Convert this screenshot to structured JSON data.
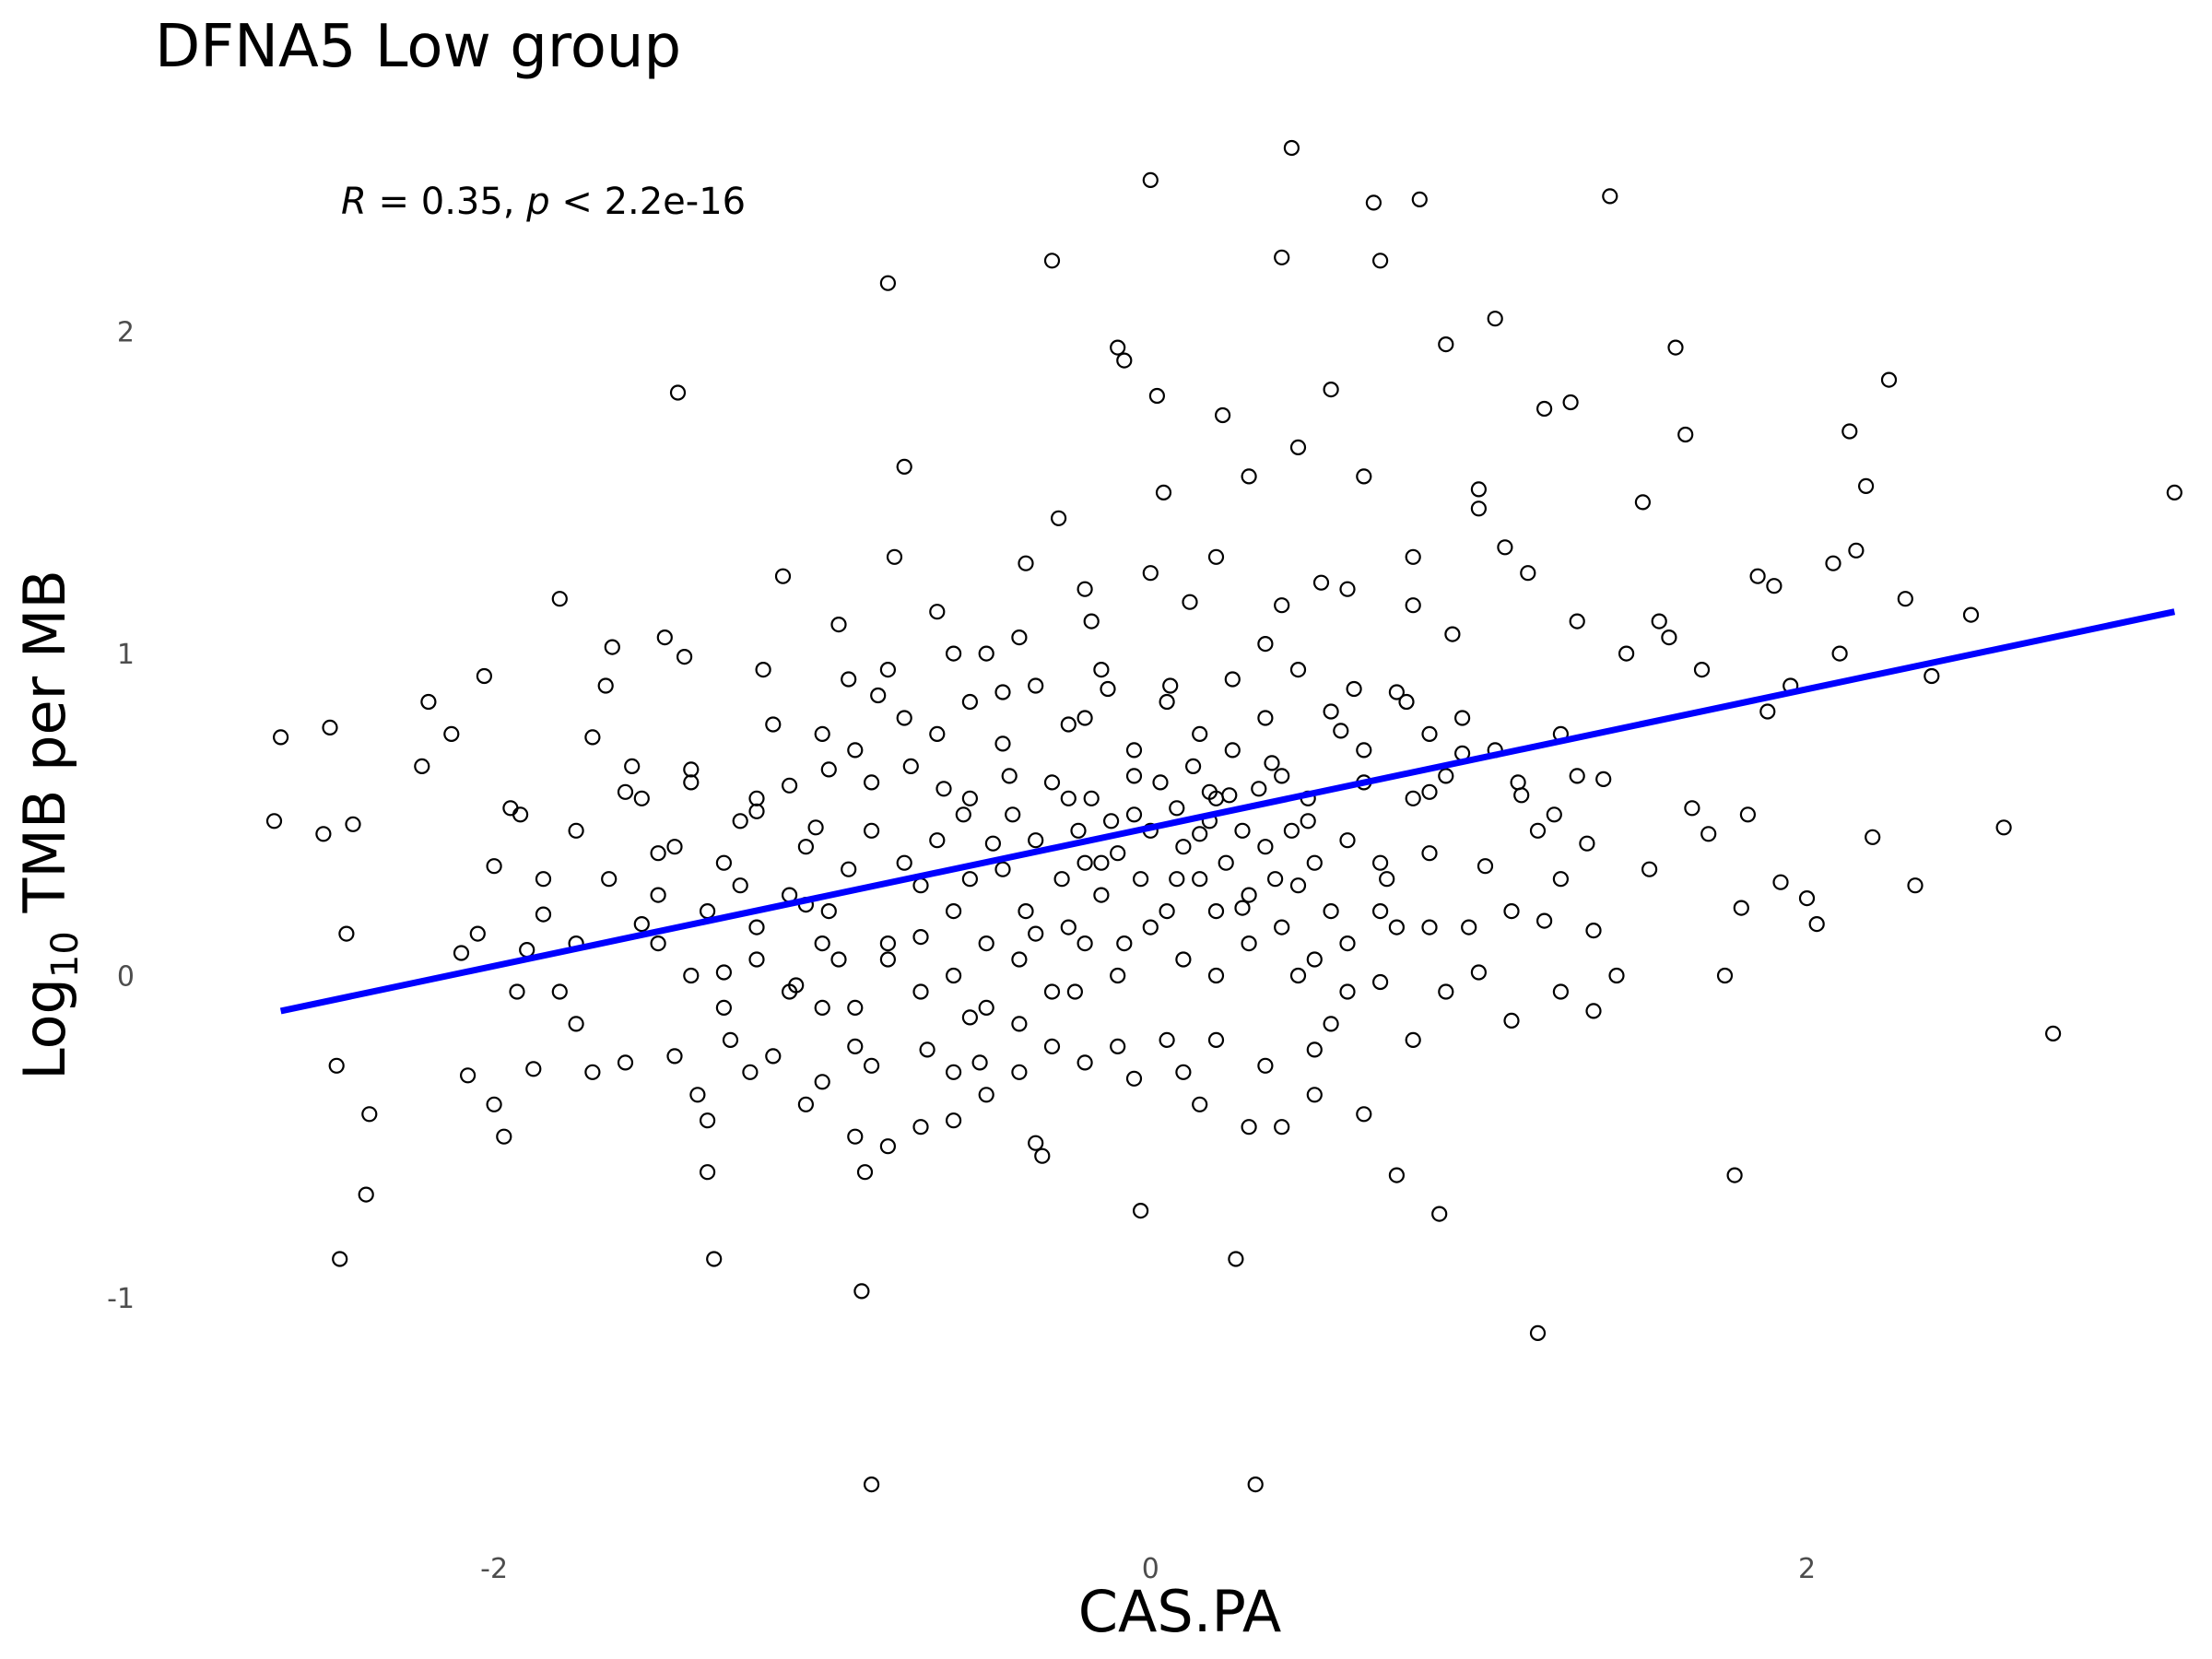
{
  "chart_data": {
    "type": "scatter",
    "title": "DFNA5 Low group",
    "xlabel": "CAS.PA",
    "ylabel": {
      "base": "Log",
      "subscript": "10",
      "rest": " TMB per MB"
    },
    "annotation": {
      "r_symbol": "R",
      "r_text": " = 0.35, ",
      "p_symbol": "p",
      "p_text": " < 2.2e-16"
    },
    "xlim": [
      -3.0,
      3.15
    ],
    "ylim": [
      -1.75,
      2.6
    ],
    "x_ticks": [
      -2,
      0,
      2
    ],
    "y_ticks": [
      -1,
      0,
      1,
      2
    ],
    "grid": false,
    "point_color": "#000000",
    "fit_line": {
      "color": "#0000ff",
      "x": [
        -2.65,
        3.12
      ],
      "y": [
        -0.11,
        1.13
      ]
    },
    "points": [
      [
        -2.65,
        0.74
      ],
      [
        -2.67,
        0.48
      ],
      [
        -2.5,
        0.77
      ],
      [
        -2.52,
        0.44
      ],
      [
        -2.43,
        0.47
      ],
      [
        -2.45,
        0.13
      ],
      [
        -2.48,
        -0.28
      ],
      [
        -2.47,
        -0.88
      ],
      [
        -2.38,
        -0.43
      ],
      [
        -2.39,
        -0.68
      ],
      [
        -2.22,
        0.65
      ],
      [
        -2.2,
        0.85
      ],
      [
        -2.13,
        0.75
      ],
      [
        -2.03,
        0.93
      ],
      [
        -2.05,
        0.13
      ],
      [
        -2.1,
        0.07
      ],
      [
        -2.08,
        -0.31
      ],
      [
        -2.0,
        -0.4
      ],
      [
        -1.97,
        -0.5
      ],
      [
        -2.0,
        0.34
      ],
      [
        -1.92,
        0.5
      ],
      [
        -1.95,
        0.52
      ],
      [
        -1.9,
        0.08
      ],
      [
        -1.93,
        -0.05
      ],
      [
        -1.88,
        -0.29
      ],
      [
        -1.85,
        0.19
      ],
      [
        -1.8,
        1.17
      ],
      [
        -1.75,
        -0.15
      ],
      [
        -1.7,
        0.74
      ],
      [
        -1.66,
        0.9
      ],
      [
        -1.64,
        1.02
      ],
      [
        -1.6,
        0.57
      ],
      [
        -1.58,
        0.65
      ],
      [
        -1.55,
        0.16
      ],
      [
        -1.5,
        0.38
      ],
      [
        -1.48,
        1.05
      ],
      [
        -1.44,
        1.81
      ],
      [
        -1.42,
        0.99
      ],
      [
        -1.4,
        0.64
      ],
      [
        -1.38,
        -0.37
      ],
      [
        -1.35,
        -0.61
      ],
      [
        -1.33,
        -0.88
      ],
      [
        -1.3,
        0.01
      ],
      [
        -1.28,
        -0.2
      ],
      [
        -1.25,
        0.48
      ],
      [
        -1.22,
        -0.3
      ],
      [
        -1.2,
        0.51
      ],
      [
        -1.18,
        0.95
      ],
      [
        -1.15,
        0.78
      ],
      [
        -1.12,
        1.24
      ],
      [
        -1.1,
        0.59
      ],
      [
        -1.08,
        -0.03
      ],
      [
        -1.05,
        0.22
      ],
      [
        -1.02,
        0.46
      ],
      [
        -1.0,
        -0.33
      ],
      [
        -0.98,
        0.64
      ],
      [
        -0.95,
        1.09
      ],
      [
        -0.92,
        0.92
      ],
      [
        -0.9,
        -0.5
      ],
      [
        -0.88,
        -0.98
      ],
      [
        -0.87,
        -0.61
      ],
      [
        -0.85,
        -1.58
      ],
      [
        -0.83,
        0.87
      ],
      [
        -0.8,
        2.15
      ],
      [
        -0.78,
        1.3
      ],
      [
        -0.75,
        1.58
      ],
      [
        -0.73,
        0.65
      ],
      [
        -0.7,
        0.12
      ],
      [
        -0.68,
        -0.23
      ],
      [
        -0.65,
        1.13
      ],
      [
        -0.63,
        0.58
      ],
      [
        -0.6,
        -0.45
      ],
      [
        -0.57,
        0.5
      ],
      [
        -0.55,
        0.3
      ],
      [
        -0.52,
        -0.27
      ],
      [
        -0.5,
        1.0
      ],
      [
        -0.48,
        0.41
      ],
      [
        -0.45,
        0.88
      ],
      [
        -0.43,
        0.62
      ],
      [
        -0.4,
        -0.3
      ],
      [
        -0.38,
        1.28
      ],
      [
        -0.35,
        0.13
      ],
      [
        -0.33,
        -0.56
      ],
      [
        -0.3,
        2.22
      ],
      [
        -0.28,
        1.42
      ],
      [
        -0.25,
        0.55
      ],
      [
        -0.23,
        -0.05
      ],
      [
        -0.2,
        0.8
      ],
      [
        -0.18,
        1.1
      ],
      [
        -0.15,
        0.35
      ],
      [
        -0.13,
        0.89
      ],
      [
        -0.1,
        1.95
      ],
      [
        -0.08,
        1.91
      ],
      [
        -0.05,
        0.62
      ],
      [
        -0.03,
        -0.73
      ],
      [
        0.0,
        2.47
      ],
      [
        0.02,
        1.8
      ],
      [
        0.04,
        1.5
      ],
      [
        0.06,
        0.9
      ],
      [
        0.08,
        0.3
      ],
      [
        0.1,
        -0.3
      ],
      [
        0.12,
        1.16
      ],
      [
        0.15,
        0.44
      ],
      [
        0.18,
        0.57
      ],
      [
        0.2,
        -0.2
      ],
      [
        0.22,
        1.74
      ],
      [
        0.24,
        0.56
      ],
      [
        0.26,
        -0.88
      ],
      [
        0.28,
        0.21
      ],
      [
        0.3,
        1.55
      ],
      [
        0.32,
        -1.58
      ],
      [
        0.35,
        1.03
      ],
      [
        0.37,
        0.66
      ],
      [
        0.4,
        2.23
      ],
      [
        0.43,
        2.57
      ],
      [
        0.45,
        1.64
      ],
      [
        0.48,
        0.48
      ],
      [
        0.5,
        -0.23
      ],
      [
        0.52,
        1.22
      ],
      [
        0.55,
        1.82
      ],
      [
        0.58,
        0.76
      ],
      [
        0.6,
        -0.05
      ],
      [
        0.62,
        0.89
      ],
      [
        0.65,
        1.55
      ],
      [
        0.68,
        2.4
      ],
      [
        0.7,
        2.22
      ],
      [
        0.72,
        0.3
      ],
      [
        0.75,
        -0.62
      ],
      [
        0.78,
        0.85
      ],
      [
        0.8,
        1.3
      ],
      [
        0.82,
        2.41
      ],
      [
        0.85,
        0.57
      ],
      [
        0.88,
        -0.74
      ],
      [
        0.9,
        1.96
      ],
      [
        0.92,
        1.06
      ],
      [
        0.95,
        0.69
      ],
      [
        0.97,
        0.15
      ],
      [
        1.0,
        1.51
      ],
      [
        1.02,
        0.34
      ],
      [
        1.05,
        2.04
      ],
      [
        1.08,
        1.33
      ],
      [
        1.1,
        0.2
      ],
      [
        1.13,
        0.56
      ],
      [
        1.15,
        1.25
      ],
      [
        1.18,
        -1.11
      ],
      [
        1.2,
        1.76
      ],
      [
        1.23,
        0.5
      ],
      [
        1.25,
        -0.05
      ],
      [
        1.28,
        1.78
      ],
      [
        1.3,
        1.1
      ],
      [
        1.33,
        0.41
      ],
      [
        1.35,
        0.14
      ],
      [
        1.38,
        0.61
      ],
      [
        1.4,
        2.42
      ],
      [
        1.42,
        0.0
      ],
      [
        1.45,
        1.0
      ],
      [
        1.5,
        1.47
      ],
      [
        1.52,
        0.33
      ],
      [
        1.55,
        1.1
      ],
      [
        1.58,
        1.05
      ],
      [
        1.6,
        1.95
      ],
      [
        1.63,
        1.68
      ],
      [
        1.65,
        0.52
      ],
      [
        1.68,
        0.95
      ],
      [
        1.7,
        0.44
      ],
      [
        1.75,
        0.0
      ],
      [
        1.78,
        -0.62
      ],
      [
        1.8,
        0.21
      ],
      [
        1.82,
        0.5
      ],
      [
        1.85,
        1.24
      ],
      [
        1.88,
        0.82
      ],
      [
        1.9,
        1.21
      ],
      [
        1.92,
        0.29
      ],
      [
        1.95,
        0.9
      ],
      [
        2.0,
        0.24
      ],
      [
        2.03,
        0.16
      ],
      [
        2.08,
        1.28
      ],
      [
        2.1,
        1.0
      ],
      [
        2.13,
        1.69
      ],
      [
        2.15,
        1.32
      ],
      [
        2.18,
        1.52
      ],
      [
        2.2,
        0.43
      ],
      [
        2.25,
        1.85
      ],
      [
        2.3,
        1.17
      ],
      [
        2.33,
        0.28
      ],
      [
        2.38,
        0.93
      ],
      [
        2.5,
        1.12
      ],
      [
        2.6,
        0.46
      ],
      [
        2.75,
        -0.18
      ],
      [
        3.12,
        1.5
      ],
      [
        -1.6,
        -0.27
      ],
      [
        -1.7,
        -0.3
      ],
      [
        -1.45,
        -0.25
      ],
      [
        -1.35,
        -0.45
      ],
      [
        -1.15,
        -0.25
      ],
      [
        -1.05,
        -0.4
      ],
      [
        -1.0,
        -0.1
      ],
      [
        -0.95,
        0.05
      ],
      [
        -0.9,
        -0.22
      ],
      [
        -0.85,
        -0.28
      ],
      [
        -0.8,
        -0.53
      ],
      [
        -0.7,
        -0.47
      ],
      [
        -0.6,
        -0.3
      ],
      [
        -0.55,
        -0.13
      ],
      [
        -0.5,
        -0.37
      ],
      [
        -0.4,
        -0.15
      ],
      [
        -0.35,
        -0.52
      ],
      [
        -0.3,
        -0.22
      ],
      [
        -0.2,
        -0.27
      ],
      [
        -0.1,
        -0.22
      ],
      [
        -0.05,
        -0.32
      ],
      [
        0.05,
        -0.2
      ],
      [
        0.15,
        -0.4
      ],
      [
        0.2,
        0.0
      ],
      [
        0.3,
        -0.47
      ],
      [
        0.35,
        -0.28
      ],
      [
        0.4,
        -0.47
      ],
      [
        0.45,
        0.0
      ],
      [
        0.5,
        -0.37
      ],
      [
        0.55,
        -0.15
      ],
      [
        0.65,
        -0.43
      ],
      [
        0.7,
        -0.02
      ],
      [
        0.8,
        -0.2
      ],
      [
        0.85,
        0.15
      ],
      [
        0.9,
        -0.05
      ],
      [
        1.0,
        0.01
      ],
      [
        1.1,
        -0.14
      ],
      [
        1.2,
        0.17
      ],
      [
        1.25,
        0.3
      ],
      [
        1.35,
        -0.11
      ],
      [
        -1.3,
        0.35
      ],
      [
        -1.25,
        0.28
      ],
      [
        -1.2,
        0.15
      ],
      [
        -1.1,
        0.25
      ],
      [
        -1.05,
        0.4
      ],
      [
        -0.98,
        0.2
      ],
      [
        -0.92,
        0.33
      ],
      [
        -0.85,
        0.45
      ],
      [
        -0.8,
        0.1
      ],
      [
        -0.75,
        0.35
      ],
      [
        -0.7,
        0.28
      ],
      [
        -0.65,
        0.42
      ],
      [
        -0.6,
        0.2
      ],
      [
        -0.55,
        0.55
      ],
      [
        -0.5,
        0.1
      ],
      [
        -0.45,
        0.33
      ],
      [
        -0.42,
        0.5
      ],
      [
        -0.38,
        0.2
      ],
      [
        -0.35,
        0.42
      ],
      [
        -0.3,
        0.6
      ],
      [
        -0.27,
        0.3
      ],
      [
        -0.25,
        0.15
      ],
      [
        -0.22,
        0.45
      ],
      [
        -0.2,
        0.35
      ],
      [
        -0.18,
        0.55
      ],
      [
        -0.15,
        0.25
      ],
      [
        -0.12,
        0.48
      ],
      [
        -0.1,
        0.38
      ],
      [
        -0.08,
        0.1
      ],
      [
        -0.05,
        0.5
      ],
      [
        -0.03,
        0.3
      ],
      [
        0.0,
        0.45
      ],
      [
        0.03,
        0.6
      ],
      [
        0.05,
        0.2
      ],
      [
        0.08,
        0.52
      ],
      [
        0.1,
        0.4
      ],
      [
        0.13,
        0.65
      ],
      [
        0.15,
        0.3
      ],
      [
        0.18,
        0.48
      ],
      [
        0.2,
        0.55
      ],
      [
        0.23,
        0.35
      ],
      [
        0.25,
        0.7
      ],
      [
        0.28,
        0.45
      ],
      [
        0.3,
        0.25
      ],
      [
        0.33,
        0.58
      ],
      [
        0.35,
        0.4
      ],
      [
        0.38,
        0.3
      ],
      [
        0.4,
        0.62
      ],
      [
        0.43,
        0.45
      ],
      [
        0.45,
        0.28
      ],
      [
        0.48,
        0.55
      ],
      [
        0.5,
        0.35
      ],
      [
        0.55,
        0.2
      ],
      [
        0.6,
        0.42
      ],
      [
        0.65,
        0.6
      ],
      [
        0.7,
        0.35
      ],
      [
        0.75,
        0.15
      ],
      [
        0.8,
        0.55
      ],
      [
        0.85,
        0.38
      ],
      [
        0.9,
        0.62
      ],
      [
        -0.9,
        0.7
      ],
      [
        -0.85,
        0.6
      ],
      [
        -0.75,
        0.8
      ],
      [
        -0.65,
        0.75
      ],
      [
        -0.55,
        0.85
      ],
      [
        -0.45,
        0.72
      ],
      [
        -0.35,
        0.9
      ],
      [
        -0.25,
        0.78
      ],
      [
        -0.15,
        0.95
      ],
      [
        -0.05,
        0.7
      ],
      [
        0.05,
        0.85
      ],
      [
        0.15,
        0.75
      ],
      [
        0.25,
        0.92
      ],
      [
        0.35,
        0.8
      ],
      [
        0.45,
        0.95
      ],
      [
        0.55,
        0.82
      ],
      [
        0.65,
        0.7
      ],
      [
        0.75,
        0.88
      ],
      [
        0.85,
        0.75
      ],
      [
        0.95,
        0.8
      ],
      [
        -1.2,
        0.55
      ],
      [
        -1.0,
        0.75
      ],
      [
        -0.8,
        0.95
      ],
      [
        -0.6,
        1.0
      ],
      [
        -0.4,
        1.05
      ],
      [
        -0.2,
        1.2
      ],
      [
        0.0,
        1.25
      ],
      [
        0.2,
        1.3
      ],
      [
        0.4,
        1.15
      ],
      [
        0.6,
        1.2
      ],
      [
        0.8,
        1.15
      ],
      [
        1.0,
        1.45
      ],
      [
        1.05,
        0.7
      ],
      [
        1.12,
        0.6
      ],
      [
        1.18,
        0.45
      ],
      [
        1.25,
        0.75
      ],
      [
        1.3,
        0.62
      ],
      [
        -1.5,
        0.1
      ],
      [
        -1.4,
        0.0
      ],
      [
        -1.3,
        -0.1
      ],
      [
        -1.2,
        0.05
      ],
      [
        -1.1,
        -0.05
      ],
      [
        -1.0,
        0.1
      ],
      [
        -0.9,
        -0.1
      ],
      [
        -0.8,
        0.05
      ],
      [
        -0.7,
        -0.05
      ],
      [
        -0.6,
        0.0
      ],
      [
        -0.5,
        -0.1
      ],
      [
        -0.4,
        0.05
      ],
      [
        -0.3,
        -0.05
      ],
      [
        -0.2,
        0.1
      ],
      [
        -0.1,
        0.0
      ],
      [
        0.0,
        0.15
      ],
      [
        0.1,
        0.05
      ],
      [
        0.2,
        0.2
      ],
      [
        0.3,
        0.1
      ],
      [
        0.4,
        0.15
      ],
      [
        0.5,
        0.05
      ],
      [
        0.6,
        0.1
      ],
      [
        0.7,
        0.2
      ],
      [
        -1.75,
        0.45
      ],
      [
        -1.65,
        0.3
      ],
      [
        -1.55,
        0.55
      ],
      [
        -1.5,
        0.25
      ],
      [
        -1.45,
        0.4
      ],
      [
        -1.4,
        0.6
      ],
      [
        -1.35,
        0.2
      ],
      [
        -1.85,
        0.3
      ],
      [
        -1.8,
        -0.05
      ],
      [
        -1.75,
        0.1
      ]
    ]
  }
}
